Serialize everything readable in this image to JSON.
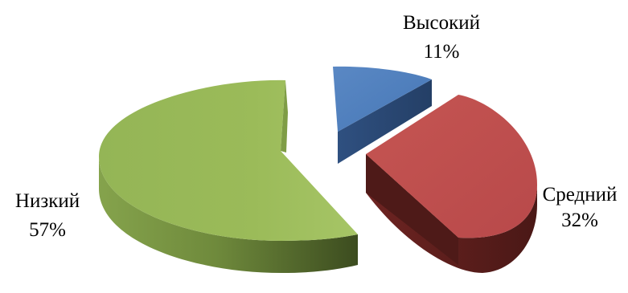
{
  "chart_data": {
    "type": "pie",
    "style": "3d-exploded",
    "slices": [
      {
        "label": "Высокий",
        "percent_label": "11%",
        "value": 11,
        "color": "#4F81BD"
      },
      {
        "label": "Средний",
        "percent_label": "32%",
        "value": 32,
        "color": "#C0504D"
      },
      {
        "label": "Низкий",
        "percent_label": "57%",
        "value": 57,
        "color": "#9BBB59"
      }
    ]
  }
}
